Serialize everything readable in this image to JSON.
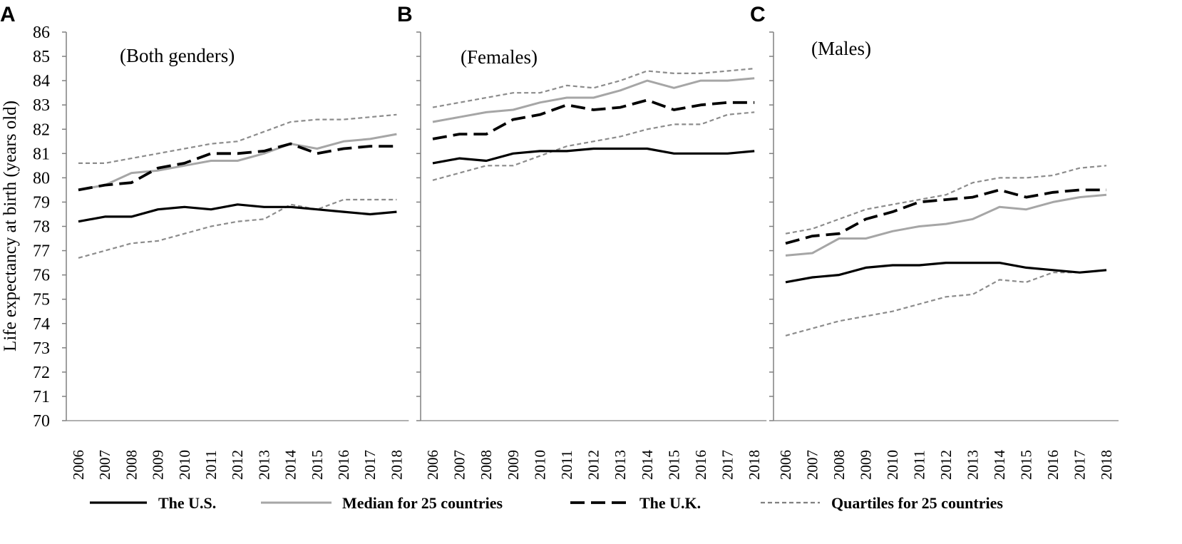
{
  "ylabel": "Life expectancy at birth (years old)",
  "yticks": [
    "70",
    "71",
    "72",
    "73",
    "74",
    "75",
    "76",
    "77",
    "78",
    "79",
    "80",
    "81",
    "82",
    "83",
    "84",
    "85",
    "86"
  ],
  "legend": [
    {
      "label": "The U.S.",
      "color": "#000000",
      "style": "solid"
    },
    {
      "label": "Median for 25 countries",
      "color": "#a6a6a6",
      "style": "solid"
    },
    {
      "label": "The U.K.",
      "color": "#000000",
      "style": "dashed"
    },
    {
      "label": "Quartiles for 25 countries",
      "color": "#808080",
      "style": "dotted"
    }
  ],
  "chart_data": [
    {
      "type": "line",
      "panel_letter": "A",
      "title": "(Both genders)",
      "x": [
        "2006",
        "2007",
        "2008",
        "2009",
        "2010",
        "2011",
        "2012",
        "2013",
        "2014",
        "2015",
        "2016",
        "2017",
        "2018"
      ],
      "ylim": [
        70,
        86
      ],
      "ylabel": "Life expectancy at birth (years old)",
      "grid": false,
      "legend_position": "bottom",
      "series": [
        {
          "name": "The U.S.",
          "values": [
            78.2,
            78.4,
            78.4,
            78.7,
            78.8,
            78.7,
            78.9,
            78.8,
            78.8,
            78.7,
            78.6,
            78.5,
            78.6
          ]
        },
        {
          "name": "Median for 25 countries",
          "values": [
            79.5,
            79.7,
            80.2,
            80.3,
            80.5,
            80.7,
            80.7,
            81.0,
            81.4,
            81.2,
            81.5,
            81.6,
            81.8
          ]
        },
        {
          "name": "The U.K.",
          "values": [
            79.5,
            79.7,
            79.8,
            80.4,
            80.6,
            81.0,
            81.0,
            81.1,
            81.4,
            81.0,
            81.2,
            81.3,
            81.3
          ]
        },
        {
          "name": "Quartiles for 25 countries",
          "values": [
            80.6,
            80.6,
            80.8,
            81.0,
            81.2,
            81.4,
            81.5,
            81.9,
            82.3,
            82.4,
            82.4,
            82.5,
            82.6
          ]
        },
        {
          "name": "Quartiles for 25 countries",
          "values": [
            76.7,
            77.0,
            77.3,
            77.4,
            77.7,
            78.0,
            78.2,
            78.3,
            78.9,
            78.7,
            79.1,
            79.1,
            79.1
          ]
        }
      ]
    },
    {
      "type": "line",
      "panel_letter": "B",
      "title": "(Females)",
      "x": [
        "2006",
        "2007",
        "2008",
        "2009",
        "2010",
        "2011",
        "2012",
        "2013",
        "2014",
        "2015",
        "2016",
        "2017",
        "2018"
      ],
      "ylim": [
        70,
        86
      ],
      "grid": false,
      "legend_position": "bottom",
      "series": [
        {
          "name": "The U.S.",
          "values": [
            80.6,
            80.8,
            80.7,
            81.0,
            81.1,
            81.1,
            81.2,
            81.2,
            81.2,
            81.0,
            81.0,
            81.0,
            81.1
          ]
        },
        {
          "name": "Median for 25 countries",
          "values": [
            82.3,
            82.5,
            82.7,
            82.8,
            83.1,
            83.3,
            83.3,
            83.6,
            84.0,
            83.7,
            84.0,
            84.0,
            84.1
          ]
        },
        {
          "name": "The U.K.",
          "values": [
            81.6,
            81.8,
            81.8,
            82.4,
            82.6,
            83.0,
            82.8,
            82.9,
            83.2,
            82.8,
            83.0,
            83.1,
            83.1
          ]
        },
        {
          "name": "Quartiles for 25 countries",
          "values": [
            82.9,
            83.1,
            83.3,
            83.5,
            83.5,
            83.8,
            83.7,
            84.0,
            84.4,
            84.3,
            84.3,
            84.4,
            84.5
          ]
        },
        {
          "name": "Quartiles for 25 countries",
          "values": [
            79.9,
            80.2,
            80.5,
            80.5,
            80.9,
            81.3,
            81.5,
            81.7,
            82.0,
            82.2,
            82.2,
            82.6,
            82.7
          ]
        }
      ]
    },
    {
      "type": "line",
      "panel_letter": "C",
      "title": "(Males)",
      "x": [
        "2006",
        "2007",
        "2008",
        "2009",
        "2010",
        "2011",
        "2012",
        "2013",
        "2014",
        "2015",
        "2016",
        "2017",
        "2018"
      ],
      "ylim": [
        70,
        86
      ],
      "grid": false,
      "legend_position": "bottom",
      "series": [
        {
          "name": "The U.S.",
          "values": [
            75.7,
            75.9,
            76.0,
            76.3,
            76.4,
            76.4,
            76.5,
            76.5,
            76.5,
            76.3,
            76.2,
            76.1,
            76.2
          ]
        },
        {
          "name": "Median for 25 countries",
          "values": [
            76.8,
            76.9,
            77.5,
            77.5,
            77.8,
            78.0,
            78.1,
            78.3,
            78.8,
            78.7,
            79.0,
            79.2,
            79.3
          ]
        },
        {
          "name": "The U.K.",
          "values": [
            77.3,
            77.6,
            77.7,
            78.3,
            78.6,
            79.0,
            79.1,
            79.2,
            79.5,
            79.2,
            79.4,
            79.5,
            79.5
          ]
        },
        {
          "name": "Quartiles for 25 countries",
          "values": [
            77.7,
            77.9,
            78.3,
            78.7,
            78.9,
            79.1,
            79.3,
            79.8,
            80.0,
            80.0,
            80.1,
            80.4,
            80.5
          ]
        },
        {
          "name": "Quartiles for 25 countries",
          "values": [
            73.5,
            73.8,
            74.1,
            74.3,
            74.5,
            74.8,
            75.1,
            75.2,
            75.8,
            75.7,
            76.1,
            76.1,
            76.2
          ]
        }
      ]
    }
  ]
}
